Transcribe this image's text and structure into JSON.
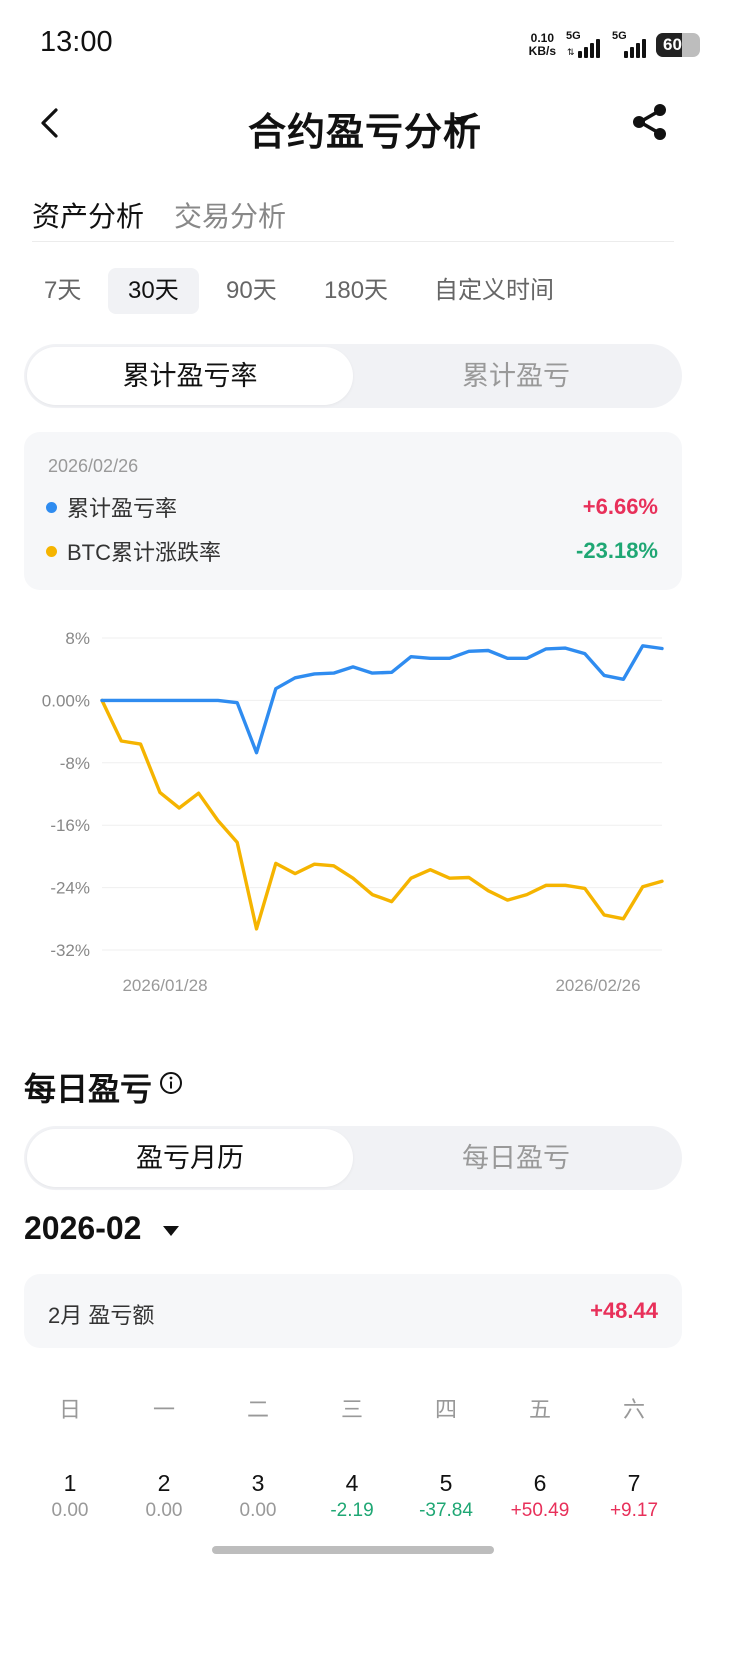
{
  "status": {
    "time": "13:00",
    "net_speed_value": "0.10",
    "net_speed_unit": "KB/s",
    "sim1": "5G",
    "sim2": "5G",
    "battery": "60"
  },
  "header": {
    "title": "合约盈亏分析"
  },
  "tabs": [
    "资产分析",
    "交易分析"
  ],
  "periods": [
    "7天",
    "30天",
    "90天",
    "180天",
    "自定义时间"
  ],
  "active_period": "30天",
  "metric_toggle": {
    "left": "累计盈亏率",
    "right": "累计盈亏",
    "active": "累计盈亏率"
  },
  "summary": {
    "date": "2026/02/26",
    "items": [
      {
        "name": "累计盈亏率",
        "value": "+6.66%",
        "dot_color": "#2f8cf0",
        "value_color": "#e8305a"
      },
      {
        "name": "BTC累计涨跌率",
        "value": "-23.18%",
        "dot_color": "#f5b400",
        "value_color": "#1fa774"
      }
    ]
  },
  "chart_data": {
    "type": "line",
    "y_tick_labels": [
      "8%",
      "0.00%",
      "-8%",
      "-16%",
      "-24%",
      "-32%"
    ],
    "y_ticks": [
      8,
      0,
      -8,
      -16,
      -24,
      -32
    ],
    "ylim": [
      -32,
      8
    ],
    "x_start_label": "2026/01/28",
    "x_end_label": "2026/02/26",
    "grid": true,
    "series": [
      {
        "name": "累计盈亏率",
        "color": "#2f8cf0",
        "values": [
          0,
          0,
          0,
          0,
          0,
          0,
          0,
          -0.3,
          -6.7,
          1.5,
          2.9,
          3.4,
          3.5,
          4.3,
          3.5,
          3.6,
          5.6,
          5.4,
          5.4,
          6.3,
          6.4,
          5.4,
          5.4,
          6.6,
          6.7,
          6.0,
          3.2,
          2.7,
          7.0,
          6.66
        ]
      },
      {
        "name": "BTC累计涨跌率",
        "color": "#f5b400",
        "values": [
          0,
          -5.2,
          -5.6,
          -11.8,
          -13.8,
          -11.9,
          -15.4,
          -18.2,
          -29.3,
          -20.9,
          -22.2,
          -21.0,
          -21.2,
          -22.8,
          -24.9,
          -25.8,
          -22.8,
          -21.7,
          -22.8,
          -22.7,
          -24.4,
          -25.6,
          -24.9,
          -23.7,
          -23.7,
          -24.1,
          -27.5,
          -28.0,
          -23.9,
          -23.18
        ]
      }
    ]
  },
  "daily": {
    "section_title": "每日盈亏",
    "toggle": {
      "left": "盈亏月历",
      "right": "每日盈亏",
      "active": "盈亏月历"
    },
    "month": "2026-02",
    "month_summary_label": "2月 盈亏额",
    "month_summary_value": "+48.44",
    "weekdays": [
      "日",
      "一",
      "二",
      "三",
      "四",
      "五",
      "六"
    ],
    "days": [
      {
        "num": "1",
        "val": "0.00",
        "color": "#999999"
      },
      {
        "num": "2",
        "val": "0.00",
        "color": "#999999"
      },
      {
        "num": "3",
        "val": "0.00",
        "color": "#999999"
      },
      {
        "num": "4",
        "val": "-2.19",
        "color": "#1fa774"
      },
      {
        "num": "5",
        "val": "-37.84",
        "color": "#1fa774"
      },
      {
        "num": "6",
        "val": "+50.49",
        "color": "#e8305a"
      },
      {
        "num": "7",
        "val": "+9.17",
        "color": "#e8305a"
      }
    ]
  },
  "icons": {
    "back": "chevron-left-icon",
    "share": "share-icon",
    "info": "info-icon",
    "dropdown": "caret-down-icon"
  }
}
